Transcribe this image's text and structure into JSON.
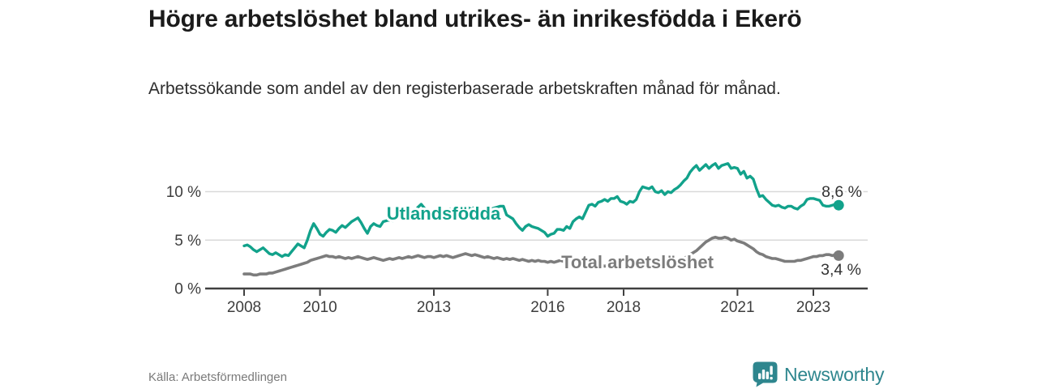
{
  "chart_data": {
    "type": "line",
    "title": "Högre arbetslöshet bland utrikes- än inrikesfödda i Ekerö",
    "subtitle": "Arbetssökande som andel av den registerbaserade arbetskraften månad för månad.",
    "source": "Källa: Arbetsförmedlingen",
    "x_axis_type": "time",
    "x_unit": "month",
    "x_start": "2008-01",
    "x_end": "2023-09",
    "x_tick_years": [
      2008,
      2010,
      2013,
      2016,
      2018,
      2021,
      2023
    ],
    "x_tick_labels": [
      "2008",
      "2010",
      "2013",
      "2016",
      "2018",
      "2021",
      "2023"
    ],
    "y_axis": {
      "unit": "%",
      "ticks": [
        0,
        5,
        10
      ],
      "tick_labels": [
        "0 %",
        "5 %",
        "10 %"
      ],
      "range": [
        0,
        13.5
      ]
    },
    "grid": "horizontal",
    "legend_position": "inline-labels",
    "series": [
      {
        "name": "Utlandsfödda",
        "color": "#12a28b",
        "end_label": "8,6 %",
        "end_value": 8.6,
        "values": [
          4.4,
          4.5,
          4.3,
          4.0,
          3.8,
          4.0,
          4.2,
          3.9,
          3.6,
          3.5,
          3.7,
          3.5,
          3.3,
          3.5,
          3.4,
          3.8,
          4.2,
          4.6,
          4.4,
          4.2,
          5.0,
          6.0,
          6.7,
          6.2,
          5.6,
          5.4,
          5.8,
          6.1,
          6.0,
          5.8,
          6.2,
          6.5,
          6.3,
          6.6,
          6.9,
          7.1,
          7.3,
          6.8,
          6.2,
          5.7,
          6.4,
          6.7,
          6.5,
          6.4,
          6.9,
          7.0,
          7.1,
          7.0,
          7.2,
          7.4,
          7.3,
          7.5,
          7.6,
          7.8,
          8.0,
          8.4,
          8.7,
          8.3,
          8.1,
          8.0,
          7.9,
          8.0,
          8.2,
          8.1,
          8.0,
          8.2,
          8.1,
          8.3,
          8.2,
          8.4,
          8.5,
          8.3,
          8.2,
          8.4,
          8.3,
          8.1,
          8.0,
          8.1,
          8.2,
          8.3,
          8.4,
          8.5,
          8.5,
          7.6,
          7.4,
          7.2,
          6.7,
          6.3,
          6.0,
          6.4,
          6.6,
          6.4,
          6.3,
          6.2,
          6.0,
          5.8,
          5.4,
          5.6,
          5.7,
          6.1,
          6.1,
          6.0,
          6.4,
          6.2,
          6.9,
          7.2,
          7.4,
          7.2,
          7.9,
          8.6,
          8.7,
          8.5,
          8.9,
          9.0,
          9.2,
          9.0,
          9.3,
          9.3,
          9.5,
          9.0,
          8.9,
          8.7,
          9.0,
          8.9,
          9.2,
          10.0,
          10.5,
          10.4,
          10.3,
          10.5,
          10.0,
          9.9,
          10.1,
          9.7,
          10.0,
          9.9,
          10.2,
          10.4,
          10.7,
          11.1,
          11.4,
          12.0,
          12.4,
          12.7,
          12.2,
          12.5,
          12.8,
          12.4,
          12.7,
          12.9,
          12.4,
          12.7,
          12.8,
          12.9,
          12.4,
          12.5,
          12.4,
          11.8,
          12.1,
          11.4,
          11.6,
          11.3,
          10.3,
          9.5,
          9.6,
          9.2,
          8.9,
          8.6,
          8.5,
          8.6,
          8.4,
          8.3,
          8.5,
          8.5,
          8.3,
          8.2,
          8.5,
          8.7,
          9.2,
          9.3,
          9.3,
          9.2,
          9.1,
          8.6,
          8.5,
          8.5,
          8.6,
          8.7,
          8.6
        ]
      },
      {
        "name": "Total arbetslöshet",
        "color": "#7c7c7c",
        "end_label": "3,4 %",
        "end_value": 3.4,
        "values": [
          1.5,
          1.5,
          1.5,
          1.4,
          1.4,
          1.5,
          1.5,
          1.5,
          1.6,
          1.6,
          1.7,
          1.8,
          1.9,
          2.0,
          2.1,
          2.2,
          2.3,
          2.4,
          2.5,
          2.6,
          2.7,
          2.9,
          3.0,
          3.1,
          3.2,
          3.3,
          3.4,
          3.3,
          3.3,
          3.2,
          3.3,
          3.2,
          3.1,
          3.2,
          3.1,
          3.2,
          3.3,
          3.2,
          3.1,
          3.0,
          3.1,
          3.2,
          3.1,
          3.0,
          2.9,
          3.0,
          3.1,
          3.0,
          3.1,
          3.2,
          3.1,
          3.2,
          3.3,
          3.2,
          3.3,
          3.4,
          3.3,
          3.2,
          3.3,
          3.3,
          3.2,
          3.3,
          3.4,
          3.3,
          3.4,
          3.3,
          3.2,
          3.3,
          3.4,
          3.5,
          3.6,
          3.5,
          3.4,
          3.5,
          3.4,
          3.3,
          3.2,
          3.3,
          3.2,
          3.1,
          3.2,
          3.1,
          3.0,
          3.1,
          3.0,
          3.1,
          3.0,
          2.9,
          3.0,
          2.9,
          2.8,
          2.9,
          2.8,
          2.9,
          2.8,
          2.8,
          2.7,
          2.8,
          2.7,
          2.8,
          2.9,
          2.8,
          2.7,
          2.6,
          2.7,
          2.6,
          2.5,
          2.6,
          2.5,
          2.6,
          2.5,
          2.4,
          2.5,
          2.4,
          2.3,
          2.4,
          2.3,
          2.4,
          2.4,
          2.3,
          2.4,
          2.3,
          2.4,
          2.3,
          2.4,
          2.5,
          2.4,
          2.3,
          2.4,
          2.5,
          2.4,
          2.5,
          2.6,
          2.6,
          2.7,
          2.8,
          2.8,
          2.9,
          3.0,
          3.1,
          3.3,
          3.5,
          3.7,
          3.9,
          4.2,
          4.5,
          4.8,
          5.0,
          5.2,
          5.3,
          5.2,
          5.2,
          5.3,
          5.2,
          5.0,
          5.1,
          4.9,
          4.8,
          4.7,
          4.5,
          4.3,
          4.1,
          3.8,
          3.6,
          3.5,
          3.3,
          3.2,
          3.1,
          3.1,
          3.0,
          2.9,
          2.8,
          2.8,
          2.8,
          2.8,
          2.9,
          2.9,
          3.0,
          3.1,
          3.2,
          3.3,
          3.3,
          3.4,
          3.4,
          3.5,
          3.5,
          3.4,
          3.5,
          3.4
        ]
      }
    ]
  },
  "footer": {
    "brand": "Newsworthy"
  },
  "colors": {
    "accent_teal": "#12a28b",
    "series_gray": "#7c7c7c",
    "logo_teal": "#2e868e",
    "axis": "#404040",
    "grid": "#d9d9d9",
    "title_text": "#1b1b1b",
    "value_label_text": "#333333"
  }
}
